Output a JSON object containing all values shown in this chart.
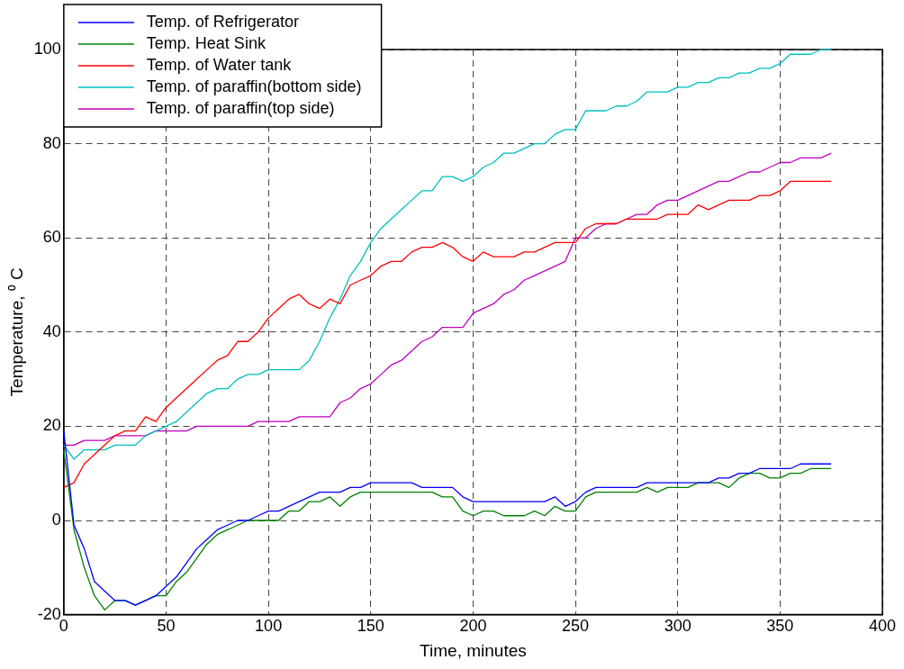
{
  "chart_data": {
    "type": "line",
    "xlabel": "Time, minutes",
    "ylabel": "Temperature, ⁰ C",
    "x": [
      0,
      5,
      10,
      15,
      20,
      25,
      30,
      35,
      40,
      45,
      50,
      55,
      60,
      65,
      70,
      75,
      80,
      85,
      90,
      95,
      100,
      105,
      110,
      115,
      120,
      125,
      130,
      135,
      140,
      145,
      150,
      155,
      160,
      165,
      170,
      175,
      180,
      185,
      190,
      195,
      200,
      205,
      210,
      215,
      220,
      225,
      230,
      235,
      240,
      245,
      250,
      255,
      260,
      265,
      270,
      275,
      280,
      285,
      290,
      295,
      300,
      305,
      310,
      315,
      320,
      325,
      330,
      335,
      340,
      345,
      350,
      355,
      360,
      365,
      370,
      375
    ],
    "xlim": [
      0,
      400
    ],
    "xticks": [
      0,
      50,
      100,
      150,
      200,
      250,
      300,
      350,
      400
    ],
    "ylim": [
      -20,
      100
    ],
    "yticks": [
      -20,
      0,
      20,
      40,
      60,
      80,
      100
    ],
    "grid": true,
    "legend": "top left",
    "marker": "none",
    "line_style": "solid",
    "series": [
      {
        "name": "Temp. of Refrigerator",
        "color": "#0000ff",
        "values": [
          19,
          -1,
          -6,
          -13,
          -15,
          -17,
          -17,
          -18,
          -17,
          -16,
          -14,
          -12,
          -9,
          -6,
          -4,
          -2,
          -1,
          0,
          0,
          1,
          2,
          2,
          3,
          4,
          5,
          6,
          6,
          6,
          7,
          7,
          8,
          8,
          8,
          8,
          8,
          7,
          7,
          7,
          7,
          5,
          4,
          4,
          4,
          4,
          4,
          4,
          4,
          4,
          5,
          3,
          4,
          6,
          7,
          7,
          7,
          7,
          7,
          8,
          8,
          8,
          8,
          8,
          8,
          8,
          9,
          9,
          10,
          10,
          11,
          11,
          11,
          11,
          12,
          12,
          12,
          12
        ]
      },
      {
        "name": "Temp. Heat Sink",
        "color": "#008000",
        "values": [
          15,
          -2,
          -10,
          -16,
          -19,
          -17,
          -17,
          -18,
          -17,
          -16,
          -16,
          -13,
          -11,
          -8,
          -5,
          -3,
          -2,
          -1,
          0,
          0,
          0,
          0,
          2,
          2,
          4,
          4,
          5,
          3,
          5,
          6,
          6,
          6,
          6,
          6,
          6,
          6,
          6,
          5,
          5,
          2,
          1,
          2,
          2,
          1,
          1,
          1,
          2,
          1,
          3,
          2,
          2,
          5,
          6,
          6,
          6,
          6,
          6,
          7,
          6,
          7,
          7,
          7,
          8,
          8,
          8,
          7,
          9,
          10,
          10,
          9,
          9,
          10,
          10,
          11,
          11,
          11
        ]
      },
      {
        "name": "Temp. of Water tank",
        "color": "#ff0000",
        "values": [
          7,
          8,
          12,
          14,
          16,
          18,
          19,
          19,
          22,
          21,
          24,
          26,
          28,
          30,
          32,
          34,
          35,
          38,
          38,
          40,
          43,
          45,
          47,
          48,
          46,
          45,
          47,
          46,
          50,
          51,
          52,
          54,
          55,
          55,
          57,
          58,
          58,
          59,
          58,
          56,
          55,
          57,
          56,
          56,
          56,
          57,
          57,
          58,
          59,
          59,
          59,
          62,
          63,
          63,
          63,
          64,
          64,
          64,
          64,
          65,
          65,
          65,
          67,
          66,
          67,
          68,
          68,
          68,
          69,
          69,
          70,
          72,
          72,
          72,
          72,
          72
        ]
      },
      {
        "name": "Temp. of paraffin(bottom side)",
        "color": "#00bfbf",
        "values": [
          16,
          13,
          15,
          15,
          15,
          16,
          16,
          16,
          18,
          19,
          20,
          21,
          23,
          25,
          27,
          28,
          28,
          30,
          31,
          31,
          32,
          32,
          32,
          32,
          34,
          38,
          43,
          47,
          52,
          55,
          59,
          62,
          64,
          66,
          68,
          70,
          70,
          73,
          73,
          72,
          73,
          75,
          76,
          78,
          78,
          79,
          80,
          80,
          82,
          83,
          83,
          87,
          87,
          87,
          88,
          88,
          89,
          91,
          91,
          91,
          92,
          92,
          93,
          93,
          94,
          94,
          95,
          95,
          96,
          96,
          97,
          99,
          99,
          99,
          100,
          100
        ]
      },
      {
        "name": "Temp. of paraffin(top side)",
        "color": "#bf00bf",
        "values": [
          16,
          16,
          17,
          17,
          17,
          18,
          18,
          18,
          18,
          19,
          19,
          19,
          19,
          20,
          20,
          20,
          20,
          20,
          20,
          21,
          21,
          21,
          21,
          22,
          22,
          22,
          22,
          25,
          26,
          28,
          29,
          31,
          33,
          34,
          36,
          38,
          39,
          41,
          41,
          41,
          44,
          45,
          46,
          48,
          49,
          51,
          52,
          53,
          54,
          55,
          60,
          60,
          62,
          63,
          63,
          64,
          65,
          65,
          67,
          68,
          68,
          69,
          70,
          71,
          72,
          72,
          73,
          74,
          74,
          75,
          76,
          76,
          77,
          77,
          77,
          78
        ]
      }
    ]
  }
}
